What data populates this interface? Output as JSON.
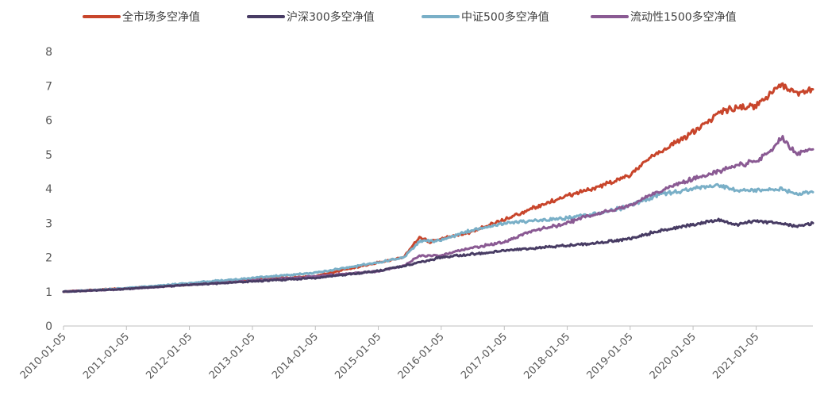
{
  "chart_data": {
    "type": "line",
    "title": "",
    "xlabel": "",
    "ylabel": "",
    "ylim": [
      0,
      8
    ],
    "yticks": [
      "0",
      "1",
      "2",
      "3",
      "4",
      "5",
      "6",
      "7",
      "8"
    ],
    "xticks": [
      "2010-01-05",
      "2011-01-05",
      "2012-01-05",
      "2013-01-05",
      "2014-01-05",
      "2015-01-05",
      "2016-01-05",
      "2017-01-05",
      "2018-01-05",
      "2019-01-05",
      "2020-01-05",
      "2021-01-05"
    ],
    "x_start": "2010-01-05",
    "x_end": "2021-11-30",
    "grid": false,
    "legend_position": "top",
    "series": [
      {
        "name": "全市场多空净值",
        "color": "#C8452B",
        "points": [
          [
            "2010-01-05",
            1.0
          ],
          [
            "2011-01-05",
            1.1
          ],
          [
            "2012-01-05",
            1.2
          ],
          [
            "2013-01-05",
            1.35
          ],
          [
            "2014-01-05",
            1.45
          ],
          [
            "2014-07-01",
            1.65
          ],
          [
            "2015-01-05",
            1.85
          ],
          [
            "2015-06-01",
            2.0
          ],
          [
            "2015-09-01",
            2.6
          ],
          [
            "2015-11-01",
            2.45
          ],
          [
            "2016-01-05",
            2.55
          ],
          [
            "2016-06-01",
            2.7
          ],
          [
            "2017-01-05",
            3.1
          ],
          [
            "2017-06-01",
            3.4
          ],
          [
            "2018-01-05",
            3.8
          ],
          [
            "2018-06-01",
            4.0
          ],
          [
            "2019-01-05",
            4.4
          ],
          [
            "2019-06-01",
            5.0
          ],
          [
            "2020-01-05",
            5.65
          ],
          [
            "2020-06-01",
            6.2
          ],
          [
            "2020-09-01",
            6.35
          ],
          [
            "2021-01-05",
            6.4
          ],
          [
            "2021-04-01",
            6.8
          ],
          [
            "2021-06-01",
            7.05
          ],
          [
            "2021-09-01",
            6.75
          ],
          [
            "2021-11-30",
            6.9
          ]
        ]
      },
      {
        "name": "沪深300多空净值",
        "color": "#483C64",
        "points": [
          [
            "2010-01-05",
            1.0
          ],
          [
            "2011-01-05",
            1.08
          ],
          [
            "2012-01-05",
            1.2
          ],
          [
            "2013-01-05",
            1.3
          ],
          [
            "2014-01-05",
            1.4
          ],
          [
            "2015-01-05",
            1.6
          ],
          [
            "2015-06-01",
            1.75
          ],
          [
            "2015-09-01",
            1.85
          ],
          [
            "2016-01-05",
            2.0
          ],
          [
            "2017-01-05",
            2.2
          ],
          [
            "2018-01-05",
            2.35
          ],
          [
            "2018-06-01",
            2.4
          ],
          [
            "2019-01-05",
            2.55
          ],
          [
            "2019-06-01",
            2.75
          ],
          [
            "2020-01-05",
            2.95
          ],
          [
            "2020-06-01",
            3.1
          ],
          [
            "2020-09-01",
            2.95
          ],
          [
            "2021-01-05",
            3.05
          ],
          [
            "2021-06-01",
            3.0
          ],
          [
            "2021-09-01",
            2.9
          ],
          [
            "2021-11-30",
            3.0
          ]
        ]
      },
      {
        "name": "中证500多空净值",
        "color": "#79AFC7",
        "points": [
          [
            "2010-01-05",
            1.0
          ],
          [
            "2011-01-05",
            1.1
          ],
          [
            "2012-01-05",
            1.25
          ],
          [
            "2013-01-05",
            1.4
          ],
          [
            "2014-01-05",
            1.55
          ],
          [
            "2014-07-01",
            1.7
          ],
          [
            "2015-01-05",
            1.85
          ],
          [
            "2015-06-01",
            2.0
          ],
          [
            "2015-09-01",
            2.45
          ],
          [
            "2016-01-05",
            2.5
          ],
          [
            "2016-06-01",
            2.75
          ],
          [
            "2017-01-05",
            3.0
          ],
          [
            "2018-01-05",
            3.15
          ],
          [
            "2018-06-01",
            3.25
          ],
          [
            "2019-01-05",
            3.5
          ],
          [
            "2019-06-01",
            3.8
          ],
          [
            "2020-01-05",
            4.0
          ],
          [
            "2020-06-01",
            4.1
          ],
          [
            "2020-09-01",
            3.95
          ],
          [
            "2021-01-05",
            3.95
          ],
          [
            "2021-06-01",
            4.0
          ],
          [
            "2021-09-01",
            3.85
          ],
          [
            "2021-11-30",
            3.9
          ]
        ]
      },
      {
        "name": "流动性1500多空净值",
        "color": "#8A5A93",
        "points": [
          [
            "2010-01-05",
            1.0
          ],
          [
            "2011-01-05",
            1.08
          ],
          [
            "2012-01-05",
            1.2
          ],
          [
            "2013-01-05",
            1.32
          ],
          [
            "2014-01-05",
            1.45
          ],
          [
            "2015-01-05",
            1.6
          ],
          [
            "2015-06-01",
            1.75
          ],
          [
            "2015-09-01",
            2.05
          ],
          [
            "2016-01-05",
            2.05
          ],
          [
            "2016-06-01",
            2.25
          ],
          [
            "2017-01-05",
            2.45
          ],
          [
            "2017-06-01",
            2.75
          ],
          [
            "2018-01-05",
            3.0
          ],
          [
            "2018-06-01",
            3.25
          ],
          [
            "2019-01-05",
            3.5
          ],
          [
            "2019-06-01",
            3.9
          ],
          [
            "2020-01-05",
            4.3
          ],
          [
            "2020-06-01",
            4.5
          ],
          [
            "2020-09-01",
            4.65
          ],
          [
            "2021-01-05",
            4.8
          ],
          [
            "2021-04-01",
            5.1
          ],
          [
            "2021-06-01",
            5.5
          ],
          [
            "2021-09-01",
            5.0
          ],
          [
            "2021-11-30",
            5.15
          ]
        ]
      }
    ]
  }
}
